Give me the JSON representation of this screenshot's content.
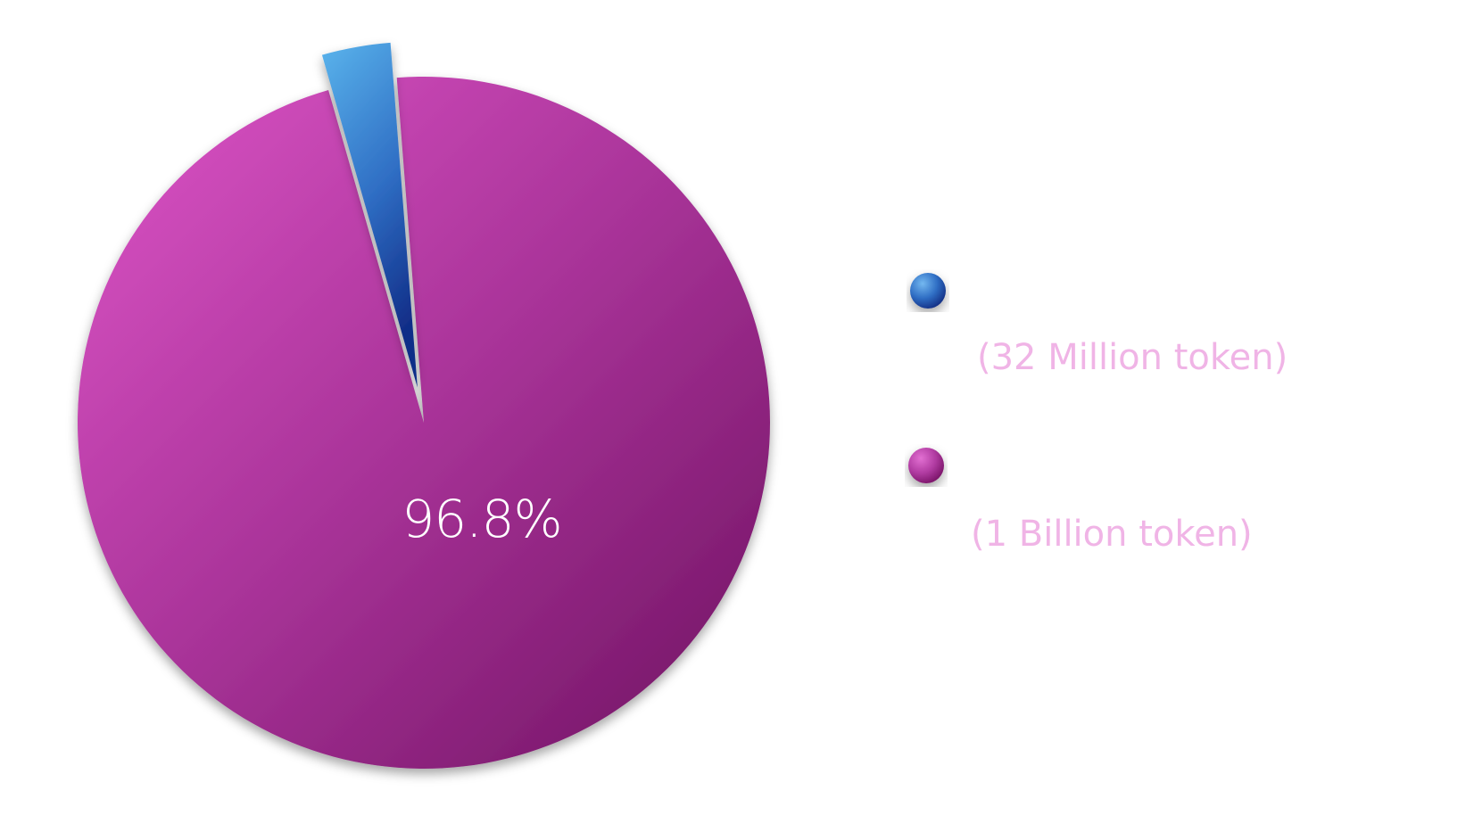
{
  "chart_data": {
    "type": "pie",
    "slices": [
      {
        "label": "(32 Million token)",
        "value": 3.2,
        "color": "#3a78cc"
      },
      {
        "label": "(1 Billion token)",
        "value": 96.8,
        "data_label": "96.8%",
        "color": "#b03ca2"
      }
    ],
    "legend_position": "right",
    "legend_text_color": "#f0b4e6"
  }
}
